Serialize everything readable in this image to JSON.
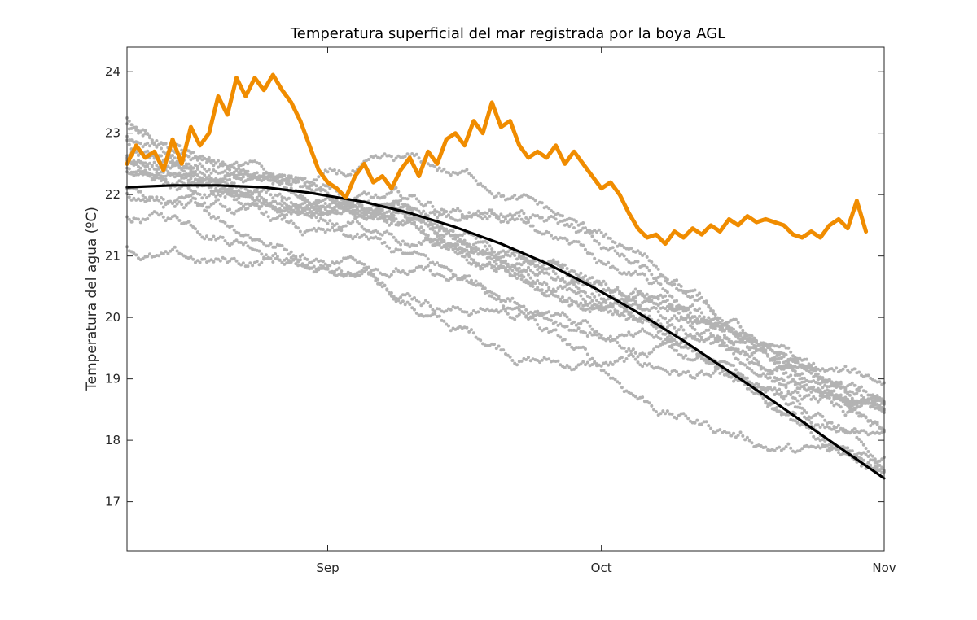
{
  "chart_data": {
    "type": "line",
    "title": "Temperatura superficial del mar registrada por la boya AGL",
    "ylabel": "Temperatura del agua (ºC)",
    "xlabel": "",
    "x_axis": {
      "type": "date",
      "range": [
        "2019-08-10",
        "2019-11-01"
      ],
      "ticks": [
        {
          "date": "2019-09-01",
          "label": "Sep"
        },
        {
          "date": "2019-10-01",
          "label": "Oct"
        },
        {
          "date": "2019-11-01",
          "label": "Nov"
        }
      ]
    },
    "y_axis": {
      "range": [
        16.2,
        24.4
      ],
      "ticks": [
        17,
        18,
        19,
        20,
        21,
        22,
        23,
        24
      ]
    },
    "grid": false,
    "legend": "none",
    "series": [
      {
        "kind": "scatter-background",
        "color": "#b3b3b3",
        "description_points": [
          [
            "2019-08-10",
            22.3
          ],
          [
            "2019-08-15",
            22.1
          ],
          [
            "2019-08-20",
            21.9
          ],
          [
            "2019-08-25",
            21.8
          ],
          [
            "2019-08-30",
            21.6
          ],
          [
            "2019-09-05",
            21.5
          ],
          [
            "2019-09-10",
            21.3
          ],
          [
            "2019-09-15",
            21.0
          ],
          [
            "2019-09-20",
            20.8
          ],
          [
            "2019-09-25",
            20.5
          ],
          [
            "2019-09-30",
            20.2
          ],
          [
            "2019-10-05",
            19.9
          ],
          [
            "2019-10-10",
            19.6
          ],
          [
            "2019-10-15",
            19.3
          ],
          [
            "2019-10-20",
            18.9
          ],
          [
            "2019-10-25",
            18.5
          ],
          [
            "2019-11-01",
            18.1
          ]
        ],
        "spread": 1.1
      },
      {
        "kind": "line",
        "color": "#000000",
        "points": [
          [
            "2019-08-10",
            22.12
          ],
          [
            "2019-08-15",
            22.15
          ],
          [
            "2019-08-20",
            22.15
          ],
          [
            "2019-08-25",
            22.12
          ],
          [
            "2019-08-30",
            22.03
          ],
          [
            "2019-09-05",
            21.88
          ],
          [
            "2019-09-10",
            21.7
          ],
          [
            "2019-09-15",
            21.47
          ],
          [
            "2019-09-20",
            21.2
          ],
          [
            "2019-09-25",
            20.88
          ],
          [
            "2019-09-30",
            20.5
          ],
          [
            "2019-10-05",
            20.08
          ],
          [
            "2019-10-10",
            19.62
          ],
          [
            "2019-10-15",
            19.12
          ],
          [
            "2019-10-20",
            18.62
          ],
          [
            "2019-10-25",
            18.1
          ],
          [
            "2019-11-01",
            17.38
          ]
        ]
      },
      {
        "kind": "line",
        "color": "#f08c00",
        "points": [
          [
            "2019-08-10",
            22.5
          ],
          [
            "2019-08-11",
            22.8
          ],
          [
            "2019-08-12",
            22.6
          ],
          [
            "2019-08-13",
            22.7
          ],
          [
            "2019-08-14",
            22.4
          ],
          [
            "2019-08-15",
            22.9
          ],
          [
            "2019-08-16",
            22.5
          ],
          [
            "2019-08-17",
            23.1
          ],
          [
            "2019-08-18",
            22.8
          ],
          [
            "2019-08-19",
            23.0
          ],
          [
            "2019-08-20",
            23.6
          ],
          [
            "2019-08-21",
            23.3
          ],
          [
            "2019-08-22",
            23.9
          ],
          [
            "2019-08-23",
            23.6
          ],
          [
            "2019-08-24",
            23.9
          ],
          [
            "2019-08-25",
            23.7
          ],
          [
            "2019-08-26",
            23.95
          ],
          [
            "2019-08-27",
            23.7
          ],
          [
            "2019-08-28",
            23.5
          ],
          [
            "2019-08-29",
            23.2
          ],
          [
            "2019-08-30",
            22.8
          ],
          [
            "2019-08-31",
            22.4
          ],
          [
            "2019-09-01",
            22.2
          ],
          [
            "2019-09-02",
            22.1
          ],
          [
            "2019-09-03",
            21.95
          ],
          [
            "2019-09-04",
            22.3
          ],
          [
            "2019-09-05",
            22.5
          ],
          [
            "2019-09-06",
            22.2
          ],
          [
            "2019-09-07",
            22.3
          ],
          [
            "2019-09-08",
            22.1
          ],
          [
            "2019-09-09",
            22.4
          ],
          [
            "2019-09-10",
            22.6
          ],
          [
            "2019-09-11",
            22.3
          ],
          [
            "2019-09-12",
            22.7
          ],
          [
            "2019-09-13",
            22.5
          ],
          [
            "2019-09-14",
            22.9
          ],
          [
            "2019-09-15",
            23.0
          ],
          [
            "2019-09-16",
            22.8
          ],
          [
            "2019-09-17",
            23.2
          ],
          [
            "2019-09-18",
            23.0
          ],
          [
            "2019-09-19",
            23.5
          ],
          [
            "2019-09-20",
            23.1
          ],
          [
            "2019-09-21",
            23.2
          ],
          [
            "2019-09-22",
            22.8
          ],
          [
            "2019-09-23",
            22.6
          ],
          [
            "2019-09-24",
            22.7
          ],
          [
            "2019-09-25",
            22.6
          ],
          [
            "2019-09-26",
            22.8
          ],
          [
            "2019-09-27",
            22.5
          ],
          [
            "2019-09-28",
            22.7
          ],
          [
            "2019-09-29",
            22.5
          ],
          [
            "2019-09-30",
            22.3
          ],
          [
            "2019-10-01",
            22.1
          ],
          [
            "2019-10-02",
            22.2
          ],
          [
            "2019-10-03",
            22.0
          ],
          [
            "2019-10-04",
            21.7
          ],
          [
            "2019-10-05",
            21.45
          ],
          [
            "2019-10-06",
            21.3
          ],
          [
            "2019-10-07",
            21.35
          ],
          [
            "2019-10-08",
            21.2
          ],
          [
            "2019-10-09",
            21.4
          ],
          [
            "2019-10-10",
            21.3
          ],
          [
            "2019-10-11",
            21.45
          ],
          [
            "2019-10-12",
            21.35
          ],
          [
            "2019-10-13",
            21.5
          ],
          [
            "2019-10-14",
            21.4
          ],
          [
            "2019-10-15",
            21.6
          ],
          [
            "2019-10-16",
            21.5
          ],
          [
            "2019-10-17",
            21.65
          ],
          [
            "2019-10-18",
            21.55
          ],
          [
            "2019-10-19",
            21.6
          ],
          [
            "2019-10-20",
            21.55
          ],
          [
            "2019-10-21",
            21.5
          ],
          [
            "2019-10-22",
            21.35
          ],
          [
            "2019-10-23",
            21.3
          ],
          [
            "2019-10-24",
            21.4
          ],
          [
            "2019-10-25",
            21.3
          ],
          [
            "2019-10-26",
            21.5
          ],
          [
            "2019-10-27",
            21.6
          ],
          [
            "2019-10-28",
            21.45
          ],
          [
            "2019-10-29",
            21.9
          ],
          [
            "2019-10-30",
            21.4
          ]
        ]
      }
    ]
  }
}
